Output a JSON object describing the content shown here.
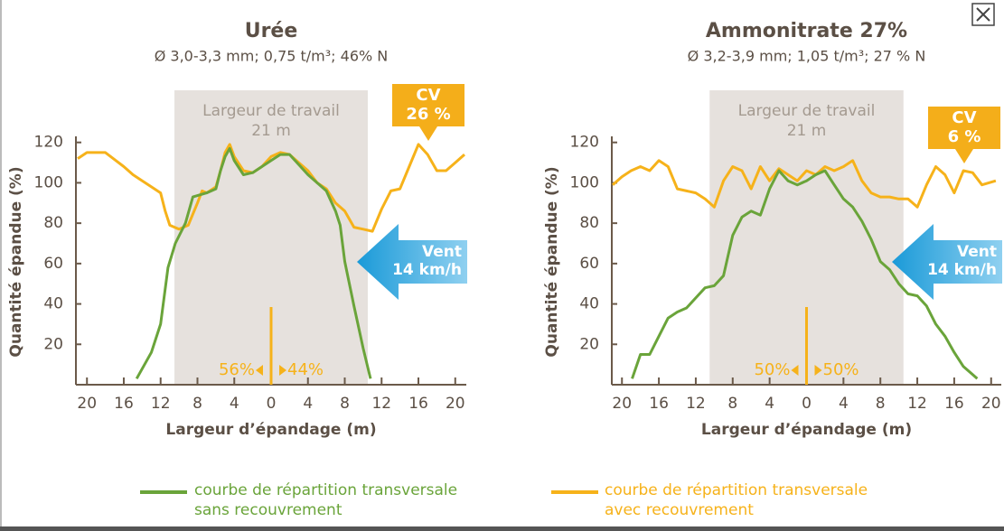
{
  "chart_data": [
    {
      "type": "line",
      "title": "Urée",
      "subtitle": "Ø 3,0-3,3 mm; 0,75 t/m³; 46% N",
      "x_label": "Largeur d’épandage (m)",
      "y_label": "Quantité épandue (%)",
      "xlim": [
        -21.2,
        21.2
      ],
      "ylim": [
        0,
        123
      ],
      "xticks": [
        {
          "value": -20,
          "label": "20"
        },
        {
          "value": -16,
          "label": "16"
        },
        {
          "value": -12,
          "label": "12"
        },
        {
          "value": -8,
          "label": "8"
        },
        {
          "value": -4,
          "label": "4"
        },
        0,
        4,
        8,
        12,
        16,
        20
      ],
      "yticks": [
        20,
        40,
        60,
        80,
        100,
        120
      ],
      "series": [
        {
          "color": "#6aa43a",
          "x": [
            -14.6,
            -13,
            -12,
            -11.2,
            -10.4,
            -9.3,
            -8.5,
            -7,
            -6,
            -5.5,
            -5,
            -4.5,
            -4,
            -3,
            -2,
            -1,
            0,
            1,
            2,
            3,
            4,
            5,
            6,
            7,
            7.5,
            8,
            9,
            10,
            10.8
          ],
          "values": [
            3,
            16,
            30,
            58,
            70,
            80,
            93,
            95,
            97,
            106,
            113,
            117,
            111,
            104,
            105,
            108,
            111,
            114,
            114,
            109,
            104,
            100,
            96,
            86,
            79,
            61,
            39,
            18,
            3
          ]
        },
        {
          "color": "#f6b21a",
          "x": [
            -21,
            -20,
            -18,
            -16,
            -15,
            -14,
            -13,
            -12,
            -11.5,
            -11,
            -10,
            -9,
            -8,
            -7.5,
            -7,
            -6,
            -5.5,
            -5,
            -4.5,
            -4,
            -3,
            -2,
            -1,
            0,
            1,
            2,
            3,
            4,
            5,
            6,
            7,
            8,
            9,
            10,
            11,
            12,
            13,
            14,
            15,
            16,
            17,
            18,
            19,
            20,
            21
          ],
          "values": [
            112,
            115,
            115,
            108,
            104,
            101,
            98,
            95,
            86,
            79,
            77,
            79,
            90,
            96,
            95,
            98,
            106,
            115,
            119,
            113,
            106,
            105,
            108,
            113,
            115,
            114,
            110,
            106,
            100,
            97,
            90,
            86,
            78,
            77,
            76,
            87,
            96,
            97,
            108,
            119,
            114,
            106,
            106,
            110,
            114
          ]
        }
      ],
      "work_zone": {
        "label": "Largeur de travail",
        "width_label": "21 m",
        "range": [
          -10.5,
          10.5
        ]
      },
      "cv": {
        "label": "CV",
        "value_label": "26 %"
      },
      "wind": {
        "label": "Vent",
        "speed": "14 km/h"
      },
      "split": [
        "56%",
        "44%"
      ]
    },
    {
      "type": "line",
      "title": "Ammonitrate 27%",
      "subtitle": "Ø 3,2-3,9 mm; 1,05 t/m³; 27 % N",
      "x_label": "Largeur d’épandage (m)",
      "y_label": "Quantité épandue (%)",
      "xlim": [
        -21.1,
        21.1
      ],
      "ylim": [
        0,
        123
      ],
      "xticks": [
        {
          "value": -20,
          "label": "20"
        },
        {
          "value": -16,
          "label": "16"
        },
        {
          "value": -12,
          "label": "12"
        },
        {
          "value": -8,
          "label": "8"
        },
        {
          "value": -4,
          "label": "4"
        },
        0,
        4,
        8,
        12,
        16,
        20
      ],
      "yticks": [
        20,
        40,
        60,
        80,
        100,
        120
      ],
      "series": [
        {
          "color": "#6aa43a",
          "x": [
            -18.9,
            -18,
            -17,
            -16,
            -15,
            -14,
            -13,
            -12,
            -11,
            -10,
            -9,
            -8,
            -7,
            -6,
            -5,
            -4,
            -3,
            -2,
            -1,
            0,
            1,
            2,
            3,
            4,
            5,
            6,
            7,
            8,
            9,
            10,
            11,
            12,
            13,
            14,
            15,
            16,
            17,
            18,
            18.5
          ],
          "values": [
            3,
            15,
            15,
            24,
            33,
            36,
            38,
            43,
            48,
            49,
            54,
            74,
            83,
            86,
            84,
            97,
            106,
            101,
            99,
            101,
            104,
            106,
            99,
            92,
            88,
            81,
            72,
            61,
            57,
            50,
            45,
            44,
            39,
            30,
            24,
            16,
            9,
            5,
            3
          ]
        },
        {
          "color": "#f6b21a",
          "x": [
            -21,
            -20,
            -19,
            -18,
            -17,
            -16,
            -15,
            -14,
            -13,
            -12,
            -11,
            -10,
            -9,
            -8,
            -7,
            -6,
            -5,
            -4,
            -3,
            -2,
            -1,
            0,
            1,
            2,
            3,
            4,
            5,
            6,
            7,
            8,
            9,
            10,
            11,
            12,
            13,
            14,
            15,
            16,
            17,
            18,
            19,
            20.5
          ],
          "values": [
            99,
            103,
            106,
            108,
            106,
            111,
            108,
            97,
            96,
            95,
            92,
            88,
            101,
            108,
            106,
            97,
            108,
            101,
            107,
            104,
            101,
            106,
            104,
            108,
            106,
            108,
            111,
            101,
            95,
            93,
            93,
            92,
            92,
            88,
            99,
            108,
            104,
            95,
            106,
            105,
            99,
            101
          ]
        }
      ],
      "work_zone": {
        "label": "Largeur de travail",
        "width_label": "21 m",
        "range": [
          -10.5,
          10.5
        ]
      },
      "cv": {
        "label": "CV",
        "value_label": "6 %"
      },
      "wind": {
        "label": "Vent",
        "speed": "14 km/h"
      },
      "split": [
        "50%",
        "50%"
      ]
    }
  ],
  "legend": [
    {
      "name": "courbe de répartition transversale\nsans recouvrement",
      "color": "#6aa43a"
    },
    {
      "name": "courbe de répartition transversale\navec recouvrement",
      "color": "#f6b21a"
    }
  ]
}
